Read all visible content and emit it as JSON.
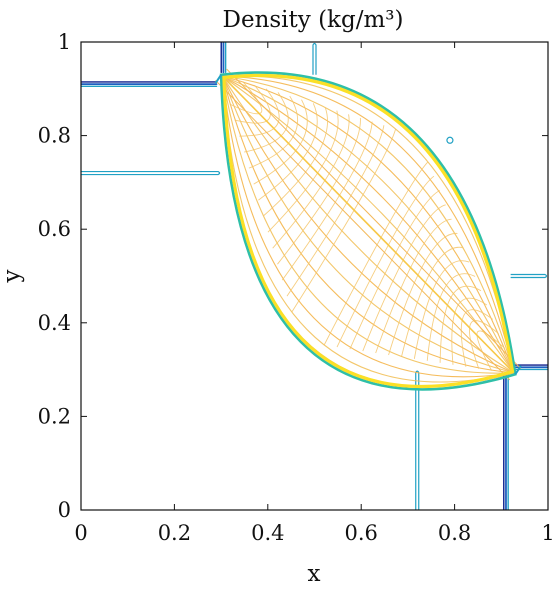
{
  "chart_data": {
    "type": "contour",
    "title": "Density (kg/m³)",
    "xlabel": "x",
    "ylabel": "y",
    "xlim": [
      0,
      1
    ],
    "ylim": [
      0,
      1
    ],
    "xticks": [
      0,
      0.2,
      0.4,
      0.6,
      0.8,
      1
    ],
    "yticks": [
      0,
      0.2,
      0.4,
      0.6,
      0.8,
      1
    ],
    "xtick_labels": [
      "0",
      "0.2",
      "0.4",
      "0.6",
      "0.8",
      "1"
    ],
    "ytick_labels": [
      "0",
      "0.2",
      "0.4",
      "0.6",
      "0.8",
      "1"
    ],
    "grid": false,
    "box": true,
    "colormap": [
      "#0c1f8c",
      "#1f5fc0",
      "#21a1c4",
      "#2fbfa8",
      "#f4b54a",
      "#fbe026"
    ],
    "regions": {
      "high_density_lens": {
        "corner_a": [
          0.3,
          0.93
        ],
        "corner_b": [
          0.93,
          0.29
        ],
        "upper_bulge": [
          0.72,
          0.8
        ],
        "lower_bulge": [
          0.47,
          0.36
        ]
      }
    },
    "contact_lines": [
      {
        "name": "left-horizontal",
        "orientation": "horizontal",
        "y": 0.91,
        "x_range": [
          0,
          0.29
        ]
      },
      {
        "name": "top-vertical",
        "orientation": "vertical",
        "x": 0.305,
        "y_range": [
          0.935,
          1
        ]
      },
      {
        "name": "bottom-vertical",
        "orientation": "vertical",
        "x": 0.91,
        "y_range": [
          0,
          0.29
        ]
      },
      {
        "name": "right-horizontal",
        "orientation": "horizontal",
        "y": 0.305,
        "x_range": [
          0.93,
          1
        ]
      }
    ],
    "thin_contours": [
      {
        "name": "thin-left",
        "orientation": "horizontal",
        "y": 0.72,
        "x_range": [
          0,
          0.3
        ]
      },
      {
        "name": "thin-top",
        "orientation": "vertical",
        "x": 0.5,
        "y_range": [
          0.93,
          1
        ]
      },
      {
        "name": "thin-bottom",
        "orientation": "vertical",
        "x": 0.72,
        "y_range": [
          0,
          0.3
        ]
      },
      {
        "name": "thin-right",
        "orientation": "horizontal",
        "y": 0.5,
        "x_range": [
          0.92,
          1
        ]
      }
    ],
    "small_contour_point": [
      0.79,
      0.79
    ]
  }
}
